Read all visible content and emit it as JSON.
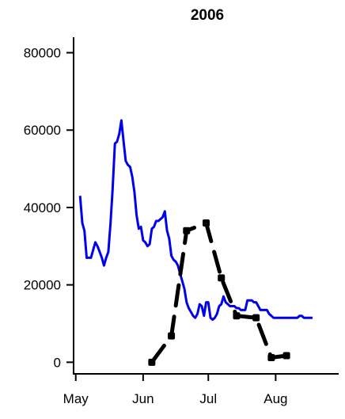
{
  "chart_data": {
    "type": "line",
    "title": "2006",
    "xlabel": "",
    "ylabel": "",
    "x_axis": {
      "type": "date",
      "range": [
        "2006-04-30",
        "2006-08-30"
      ],
      "ticks": [
        {
          "date": "2006-05-01",
          "label": "May"
        },
        {
          "date": "2006-06-01",
          "label": "Jun"
        },
        {
          "date": "2006-07-01",
          "label": "Jul"
        },
        {
          "date": "2006-08-01",
          "label": "Aug"
        }
      ]
    },
    "y_axis": {
      "range": [
        -3000,
        84000
      ],
      "ticks": [
        0,
        20000,
        40000,
        60000,
        80000
      ],
      "tick_labels": [
        "0",
        "20000",
        "40000",
        "60000",
        "80000"
      ]
    },
    "grid": false,
    "legend": "none",
    "series": [
      {
        "color": "#0000ee",
        "style": "solid",
        "points": [
          [
            "2006-05-03",
            43000
          ],
          [
            "2006-05-04",
            36000
          ],
          [
            "2006-05-05",
            34000
          ],
          [
            "2006-05-06",
            27000
          ],
          [
            "2006-05-07",
            27000
          ],
          [
            "2006-05-08",
            27000
          ],
          [
            "2006-05-09",
            29000
          ],
          [
            "2006-05-10",
            31000
          ],
          [
            "2006-05-11",
            30000
          ],
          [
            "2006-05-12",
            28500
          ],
          [
            "2006-05-13",
            27000
          ],
          [
            "2006-05-14",
            25000
          ],
          [
            "2006-05-15",
            27000
          ],
          [
            "2006-05-16",
            28500
          ],
          [
            "2006-05-17",
            36000
          ],
          [
            "2006-05-18",
            45000
          ],
          [
            "2006-05-19",
            56500
          ],
          [
            "2006-05-20",
            57000
          ],
          [
            "2006-05-21",
            59000
          ],
          [
            "2006-05-22",
            62500
          ],
          [
            "2006-05-23",
            57000
          ],
          [
            "2006-05-24",
            52000
          ],
          [
            "2006-05-25",
            51000
          ],
          [
            "2006-05-26",
            50500
          ],
          [
            "2006-05-27",
            48000
          ],
          [
            "2006-05-28",
            44000
          ],
          [
            "2006-05-29",
            38000
          ],
          [
            "2006-05-30",
            34500
          ],
          [
            "2006-05-31",
            35000
          ],
          [
            "2006-06-01",
            31500
          ],
          [
            "2006-06-02",
            31000
          ],
          [
            "2006-06-03",
            30000
          ],
          [
            "2006-06-04",
            30500
          ],
          [
            "2006-06-05",
            34500
          ],
          [
            "2006-06-06",
            35000
          ],
          [
            "2006-06-07",
            36500
          ],
          [
            "2006-06-08",
            36500
          ],
          [
            "2006-06-09",
            37000
          ],
          [
            "2006-06-10",
            37500
          ],
          [
            "2006-06-11",
            39000
          ],
          [
            "2006-06-12",
            34000
          ],
          [
            "2006-06-13",
            32000
          ],
          [
            "2006-06-14",
            27500
          ],
          [
            "2006-06-15",
            26500
          ],
          [
            "2006-06-16",
            26000
          ],
          [
            "2006-06-17",
            25000
          ],
          [
            "2006-06-18",
            23000
          ],
          [
            "2006-06-19",
            21000
          ],
          [
            "2006-06-20",
            19000
          ],
          [
            "2006-06-21",
            15500
          ],
          [
            "2006-06-22",
            14000
          ],
          [
            "2006-06-23",
            13000
          ],
          [
            "2006-06-24",
            12000
          ],
          [
            "2006-06-25",
            11500
          ],
          [
            "2006-06-26",
            12500
          ],
          [
            "2006-06-27",
            15000
          ],
          [
            "2006-06-28",
            14500
          ],
          [
            "2006-06-29",
            12000
          ],
          [
            "2006-06-30",
            15500
          ],
          [
            "2006-07-01",
            15500
          ],
          [
            "2006-07-02",
            11500
          ],
          [
            "2006-07-03",
            11000
          ],
          [
            "2006-07-04",
            11500
          ],
          [
            "2006-07-05",
            12500
          ],
          [
            "2006-07-06",
            14500
          ],
          [
            "2006-07-07",
            15000
          ],
          [
            "2006-07-08",
            17000
          ],
          [
            "2006-07-09",
            15500
          ],
          [
            "2006-07-10",
            15000
          ],
          [
            "2006-07-11",
            14500
          ],
          [
            "2006-07-12",
            14500
          ],
          [
            "2006-07-13",
            14500
          ],
          [
            "2006-07-14",
            14000
          ],
          [
            "2006-07-15",
            14000
          ],
          [
            "2006-07-16",
            13500
          ],
          [
            "2006-07-17",
            13500
          ],
          [
            "2006-07-18",
            13500
          ],
          [
            "2006-07-19",
            16000
          ],
          [
            "2006-07-20",
            16000
          ],
          [
            "2006-07-21",
            16000
          ],
          [
            "2006-07-22",
            15500
          ],
          [
            "2006-07-23",
            15500
          ],
          [
            "2006-07-24",
            14500
          ],
          [
            "2006-07-25",
            13500
          ],
          [
            "2006-07-26",
            13500
          ],
          [
            "2006-07-27",
            13500
          ],
          [
            "2006-07-28",
            13500
          ],
          [
            "2006-07-29",
            12500
          ],
          [
            "2006-07-30",
            12000
          ],
          [
            "2006-07-31",
            11500
          ],
          [
            "2006-08-01",
            11500
          ],
          [
            "2006-08-02",
            11500
          ],
          [
            "2006-08-03",
            11500
          ],
          [
            "2006-08-04",
            11500
          ],
          [
            "2006-08-05",
            11500
          ],
          [
            "2006-08-06",
            11500
          ],
          [
            "2006-08-07",
            11500
          ],
          [
            "2006-08-08",
            11500
          ],
          [
            "2006-08-09",
            11500
          ],
          [
            "2006-08-10",
            11500
          ],
          [
            "2006-08-11",
            11500
          ],
          [
            "2006-08-12",
            12000
          ],
          [
            "2006-08-13",
            12000
          ],
          [
            "2006-08-14",
            11500
          ],
          [
            "2006-08-15",
            11500
          ],
          [
            "2006-08-16",
            11500
          ],
          [
            "2006-08-17",
            11500
          ],
          [
            "2006-08-18",
            11500
          ]
        ]
      },
      {
        "color": "#000000",
        "style": "dashed",
        "markers": true,
        "points": [
          [
            "2006-06-05",
            0
          ],
          [
            "2006-06-14",
            6800
          ],
          [
            "2006-06-21",
            34000
          ],
          [
            "2006-06-30",
            36000
          ],
          [
            "2006-07-07",
            21800
          ],
          [
            "2006-07-14",
            12000
          ],
          [
            "2006-07-23",
            11500
          ],
          [
            "2006-07-30",
            1200
          ],
          [
            "2006-08-06",
            1700
          ]
        ]
      }
    ]
  }
}
